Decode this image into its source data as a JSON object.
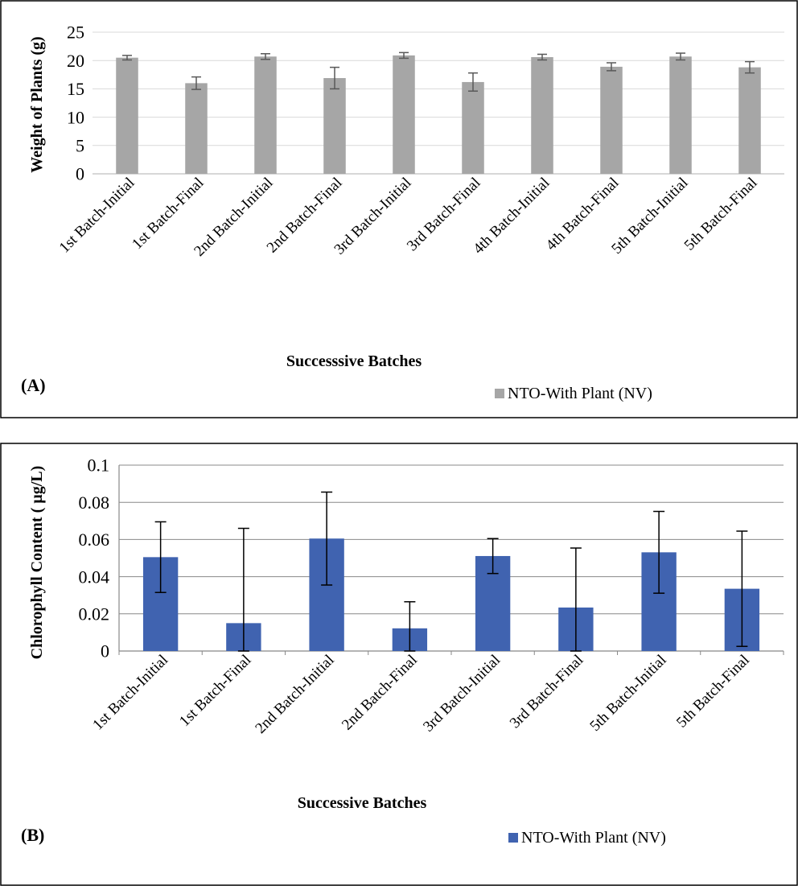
{
  "chart_data": [
    {
      "type": "bar",
      "panel_label": "(A)",
      "title": "",
      "xlabel": "Successsive Batches",
      "ylabel": "Weight of Plants (g)",
      "ylim": [
        0,
        25
      ],
      "yticks": [
        0,
        5,
        10,
        15,
        20,
        25
      ],
      "grid": true,
      "legend_position": "bottom-right",
      "bar_color": "#A6A6A6",
      "error_color": "#595959",
      "categories": [
        "1st Batch-Initial",
        "1st Batch-Final",
        "2nd Batch-Initial",
        "2nd Batch-Final",
        "3rd Batch-Initial",
        "3rd Batch-Final",
        "4th Batch-Initial",
        "4th Batch-Final",
        "5th Batch-Initial",
        "5th Batch-Final"
      ],
      "series": [
        {
          "name": "NTO-With Plant (NV)",
          "values": [
            20.5,
            16.0,
            20.7,
            16.9,
            20.9,
            16.2,
            20.6,
            18.9,
            20.7,
            18.8
          ],
          "errors": [
            0.4,
            1.1,
            0.5,
            1.9,
            0.5,
            1.6,
            0.5,
            0.7,
            0.6,
            1.0
          ]
        }
      ]
    },
    {
      "type": "bar",
      "panel_label": "(B)",
      "title": "",
      "xlabel": "Successive Batches",
      "ylabel": "Chlorophyll Content ( µg/L)",
      "ylim": [
        0,
        0.1
      ],
      "yticks": [
        "0",
        "0.02",
        "0.04",
        "0.06",
        "0.08",
        "0.1"
      ],
      "grid": true,
      "legend_position": "bottom-right",
      "bar_color": "#4063B0",
      "error_color": "#000000",
      "categories": [
        "1st Batch-Initial",
        "1st Batch-Final",
        "2nd Batch-Initial",
        "2nd Batch-Final",
        "3rd Batch-Initial",
        "3rd Batch-Final",
        "5th Batch-Initial",
        "5th Batch-Final"
      ],
      "series": [
        {
          "name": "NTO-With Plant (NV)",
          "values": [
            0.0505,
            0.015,
            0.0605,
            0.0122,
            0.0511,
            0.0234,
            0.0531,
            0.0335
          ],
          "errors": [
            0.019,
            0.051,
            0.025,
            0.0143,
            0.0094,
            0.032,
            0.022,
            0.031
          ]
        }
      ]
    }
  ]
}
